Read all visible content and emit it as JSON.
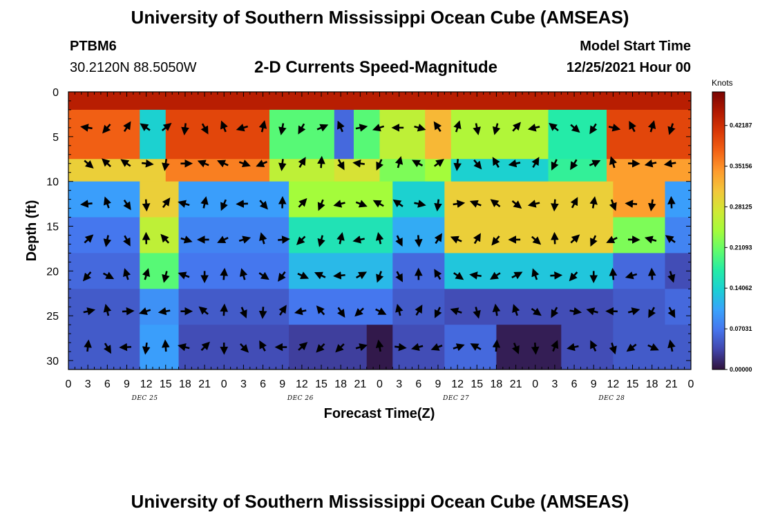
{
  "header": {
    "title": "University of Southern Mississippi Ocean Cube (AMSEAS)",
    "station": "PTBM6",
    "coords": "30.2120N  88.5050W",
    "subtitle": "2-D Currents Speed-Magnitude",
    "model_label": "Model Start Time",
    "model_time": "12/25/2021 Hour 00"
  },
  "footer": {
    "title": "University of Southern Mississippi Ocean Cube (AMSEAS)"
  },
  "colorbar": {
    "unit": "Knots",
    "ticks": [
      "0.00000",
      "0.07031",
      "0.14062",
      "0.21093",
      "0.28125",
      "0.35156",
      "0.42187"
    ],
    "tick_values": [
      0,
      0.07031,
      0.14062,
      0.21093,
      0.28125,
      0.35156,
      0.42187
    ],
    "min": 0,
    "max": 0.48,
    "colors": [
      "#30123b",
      "#4145ab",
      "#4675ed",
      "#39a2fc",
      "#1bcfd4",
      "#24eca6",
      "#61fc6c",
      "#a4fc3b",
      "#d1e834",
      "#f3c63a",
      "#fe9b2d",
      "#f36315",
      "#d93806",
      "#b11901",
      "#7a0402"
    ]
  },
  "chart_data": {
    "type": "heatmap",
    "title": "2-D Currents Speed-Magnitude",
    "xlabel": "Forecast Time(Z)",
    "ylabel": "Depth (ft)",
    "x_ticks": [
      "0",
      "3",
      "6",
      "9",
      "12",
      "15",
      "18",
      "21",
      "0",
      "3",
      "6",
      "9",
      "12",
      "15",
      "18",
      "21",
      "0",
      "3",
      "6",
      "9",
      "12",
      "15",
      "18",
      "21",
      "0",
      "3",
      "6",
      "9",
      "12",
      "15",
      "18",
      "21",
      "0"
    ],
    "day_labels": [
      "DEC 25",
      "DEC 26",
      "DEC 27",
      "DEC 28"
    ],
    "y_ticks": [
      "0",
      "5",
      "10",
      "15",
      "20",
      "25",
      "30"
    ],
    "y_tick_values": [
      0,
      5,
      10,
      15,
      20,
      25,
      30
    ],
    "xlim": [
      0,
      96
    ],
    "ylim": [
      0,
      31
    ],
    "vector_depths": [
      4,
      8,
      12.5,
      16.5,
      20.5,
      24.5,
      28.5
    ],
    "vector_hour_step": 3,
    "layers": [
      {
        "name": "0-2 ft",
        "depth_range": [
          0,
          2
        ],
        "segments": [
          [
            0,
            96,
            0.44
          ]
        ]
      },
      {
        "name": "2-7.5 ft",
        "depth_range": [
          2,
          7.5
        ],
        "segments": [
          [
            0,
            11,
            0.38
          ],
          [
            11,
            15,
            0.14
          ],
          [
            15,
            31,
            0.4
          ],
          [
            31,
            41,
            0.2
          ],
          [
            41,
            44,
            0.06
          ],
          [
            44,
            48,
            0.2
          ],
          [
            48,
            55,
            0.26
          ],
          [
            55,
            59,
            0.32
          ],
          [
            59,
            74,
            0.25
          ],
          [
            74,
            83,
            0.17
          ],
          [
            83,
            96,
            0.4
          ]
        ]
      },
      {
        "name": "7.5-10 ft",
        "depth_range": [
          7.5,
          10
        ],
        "segments": [
          [
            0,
            15,
            0.3
          ],
          [
            15,
            31,
            0.36
          ],
          [
            31,
            41,
            0.26
          ],
          [
            41,
            48,
            0.28
          ],
          [
            48,
            55,
            0.22
          ],
          [
            55,
            59,
            0.24
          ],
          [
            59,
            74,
            0.14
          ],
          [
            74,
            83,
            0.18
          ],
          [
            83,
            96,
            0.34
          ]
        ]
      },
      {
        "name": "10-14 ft",
        "depth_range": [
          10,
          14
        ],
        "segments": [
          [
            0,
            11,
            0.1
          ],
          [
            11,
            17,
            0.3
          ],
          [
            17,
            34,
            0.1
          ],
          [
            34,
            50,
            0.24
          ],
          [
            50,
            58,
            0.14
          ],
          [
            58,
            84,
            0.3
          ],
          [
            84,
            92,
            0.34
          ],
          [
            92,
            96,
            0.1
          ]
        ]
      },
      {
        "name": "14-18 ft",
        "depth_range": [
          14,
          18
        ],
        "segments": [
          [
            0,
            11,
            0.07
          ],
          [
            11,
            17,
            0.26
          ],
          [
            17,
            34,
            0.08
          ],
          [
            34,
            50,
            0.16
          ],
          [
            50,
            58,
            0.11
          ],
          [
            58,
            84,
            0.3
          ],
          [
            84,
            92,
            0.22
          ],
          [
            92,
            96,
            0.08
          ]
        ]
      },
      {
        "name": "18-22 ft",
        "depth_range": [
          18,
          22
        ],
        "segments": [
          [
            0,
            11,
            0.06
          ],
          [
            11,
            17,
            0.2
          ],
          [
            17,
            34,
            0.07
          ],
          [
            34,
            50,
            0.12
          ],
          [
            50,
            58,
            0.06
          ],
          [
            58,
            84,
            0.13
          ],
          [
            84,
            92,
            0.06
          ],
          [
            92,
            96,
            0.04
          ]
        ]
      },
      {
        "name": "22-26 ft",
        "depth_range": [
          22,
          26
        ],
        "segments": [
          [
            0,
            11,
            0.05
          ],
          [
            11,
            17,
            0.09
          ],
          [
            17,
            34,
            0.05
          ],
          [
            34,
            50,
            0.07
          ],
          [
            50,
            58,
            0.05
          ],
          [
            58,
            84,
            0.04
          ],
          [
            84,
            92,
            0.05
          ],
          [
            92,
            96,
            0.06
          ]
        ]
      },
      {
        "name": "26-31 ft",
        "depth_range": [
          26,
          31
        ],
        "segments": [
          [
            0,
            11,
            0.05
          ],
          [
            11,
            17,
            0.1
          ],
          [
            17,
            34,
            0.04
          ],
          [
            34,
            46,
            0.03
          ],
          [
            46,
            50,
            0.005
          ],
          [
            50,
            58,
            0.04
          ],
          [
            58,
            66,
            0.06
          ],
          [
            66,
            76,
            0.008
          ],
          [
            76,
            84,
            0.04
          ],
          [
            84,
            96,
            0.05
          ]
        ]
      }
    ]
  }
}
